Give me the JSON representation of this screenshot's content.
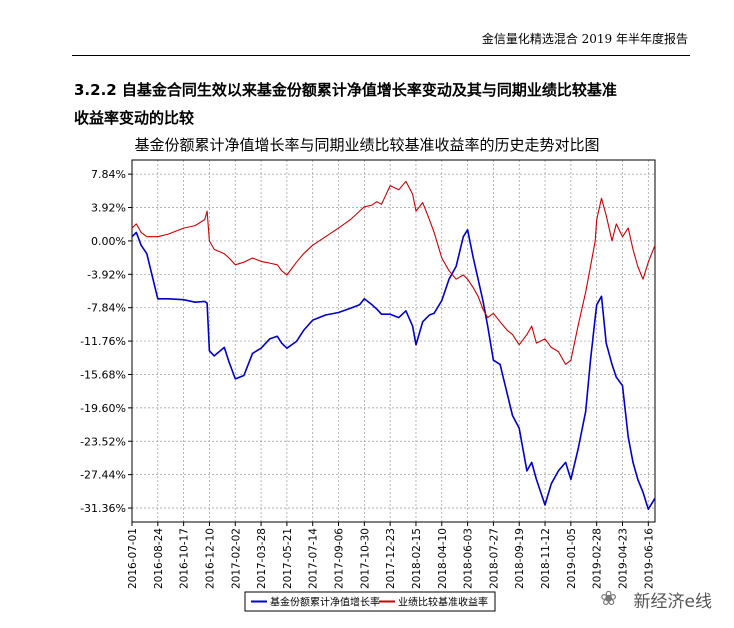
{
  "header": {
    "report_title": "金信量化精选混合 2019 年半年度报告"
  },
  "section": {
    "heading_line1": "3.2.2 自基金合同生效以来基金份额累计净值增长率变动及其与同期业绩比较基准",
    "heading_line2": "收益率变动的比较"
  },
  "watermark": {
    "icon": "wechat-icon",
    "text": "新经济e线"
  },
  "colors": {
    "fund": "#0000cc",
    "benchmark": "#cc0000",
    "grid": "#999999"
  },
  "chart_data": {
    "type": "line",
    "title": "基金份额累计净值增长率与同期业绩比较基准收益率的历史走势对比图",
    "xlabel": "",
    "ylabel": "",
    "yticks": [
      "7.84%",
      "3.92%",
      "0.00%",
      "-3.92%",
      "-7.84%",
      "-11.76%",
      "-15.68%",
      "-19.60%",
      "-23.52%",
      "-27.44%",
      "-31.36%"
    ],
    "ylim": [
      -33.0,
      9.5
    ],
    "xticks": [
      "2016-07-01",
      "2016-08-24",
      "2016-10-17",
      "2016-12-10",
      "2017-02-02",
      "2017-03-28",
      "2017-05-21",
      "2017-07-14",
      "2017-09-06",
      "2017-10-30",
      "2017-12-23",
      "2018-02-15",
      "2018-04-10",
      "2018-06-03",
      "2018-07-27",
      "2018-09-19",
      "2018-11-12",
      "2019-01-05",
      "2019-02-28",
      "2019-04-23",
      "2019-06-16"
    ],
    "x": [
      "2016-07-01",
      "2016-07-10",
      "2016-07-20",
      "2016-08-01",
      "2016-08-24",
      "2016-09-15",
      "2016-10-17",
      "2016-11-10",
      "2016-11-30",
      "2016-12-05",
      "2016-12-10",
      "2016-12-20",
      "2017-01-10",
      "2017-01-20",
      "2017-02-02",
      "2017-02-20",
      "2017-03-10",
      "2017-03-28",
      "2017-04-15",
      "2017-05-01",
      "2017-05-10",
      "2017-05-21",
      "2017-06-10",
      "2017-06-25",
      "2017-07-14",
      "2017-08-10",
      "2017-09-06",
      "2017-10-01",
      "2017-10-20",
      "2017-10-30",
      "2017-11-15",
      "2017-11-25",
      "2017-12-05",
      "2017-12-23",
      "2018-01-10",
      "2018-01-25",
      "2018-02-08",
      "2018-02-15",
      "2018-03-01",
      "2018-03-15",
      "2018-03-25",
      "2018-04-10",
      "2018-04-25",
      "2018-05-10",
      "2018-05-25",
      "2018-06-03",
      "2018-06-15",
      "2018-06-25",
      "2018-07-05",
      "2018-07-15",
      "2018-07-27",
      "2018-08-10",
      "2018-08-25",
      "2018-09-05",
      "2018-09-19",
      "2018-10-05",
      "2018-10-15",
      "2018-10-25",
      "2018-11-12",
      "2018-11-25",
      "2018-12-10",
      "2018-12-25",
      "2019-01-05",
      "2019-01-20",
      "2019-02-05",
      "2019-02-15",
      "2019-02-25",
      "2019-02-28",
      "2019-03-10",
      "2019-03-20",
      "2019-04-01",
      "2019-04-10",
      "2019-04-23",
      "2019-05-05",
      "2019-05-15",
      "2019-05-25",
      "2019-06-05",
      "2019-06-16",
      "2019-06-30"
    ],
    "series": [
      {
        "name": "基金份额累计净值增长率",
        "color": "#0000cc",
        "values": [
          0.5,
          1.0,
          -0.5,
          -1.5,
          -6.8,
          -6.8,
          -6.9,
          -7.2,
          -7.1,
          -7.3,
          -12.9,
          -13.5,
          -12.5,
          -14.2,
          -16.2,
          -15.8,
          -13.2,
          -12.6,
          -11.5,
          -11.2,
          -12.0,
          -12.6,
          -11.8,
          -10.5,
          -9.3,
          -8.7,
          -8.4,
          -7.9,
          -7.5,
          -6.8,
          -7.5,
          -8.0,
          -8.6,
          -8.6,
          -9.0,
          -8.2,
          -10.0,
          -12.2,
          -9.5,
          -8.7,
          -8.5,
          -7.0,
          -4.5,
          -3.0,
          0.5,
          1.3,
          -2.0,
          -4.5,
          -7.0,
          -10.0,
          -14.0,
          -14.5,
          -18.0,
          -20.5,
          -22.0,
          -27.0,
          -26.0,
          -28.0,
          -31.0,
          -28.5,
          -27.0,
          -26.0,
          -28.0,
          -24.5,
          -20.0,
          -14.0,
          -9.0,
          -7.5,
          -6.5,
          -12.0,
          -14.5,
          -16.0,
          -17.0,
          -23.0,
          -26.0,
          -28.0,
          -29.5,
          -31.5,
          -30.2
        ]
      },
      {
        "name": "业绩比较基准收益率",
        "color": "#cc0000",
        "values": [
          1.5,
          2.0,
          1.0,
          0.5,
          0.5,
          0.8,
          1.5,
          1.8,
          2.5,
          3.5,
          0.0,
          -1.0,
          -1.5,
          -2.0,
          -2.8,
          -2.5,
          -2.0,
          -2.4,
          -2.6,
          -2.8,
          -3.5,
          -4.0,
          -2.5,
          -1.5,
          -0.5,
          0.5,
          1.5,
          2.5,
          3.5,
          4.0,
          4.2,
          4.6,
          4.3,
          6.5,
          6.0,
          7.0,
          5.5,
          3.5,
          4.5,
          2.5,
          1.0,
          -2.0,
          -3.5,
          -4.5,
          -4.0,
          -4.5,
          -5.5,
          -6.5,
          -8.0,
          -9.0,
          -8.5,
          -9.5,
          -10.5,
          -11.0,
          -12.2,
          -11.0,
          -10.0,
          -12.0,
          -11.5,
          -12.5,
          -13.0,
          -14.5,
          -14.0,
          -10.0,
          -6.0,
          -3.0,
          0.0,
          2.5,
          5.0,
          3.0,
          0.0,
          2.0,
          0.5,
          1.5,
          -1.0,
          -3.0,
          -4.5,
          -2.5,
          -0.5
        ]
      }
    ],
    "legend_position": "bottom",
    "grid": true
  }
}
